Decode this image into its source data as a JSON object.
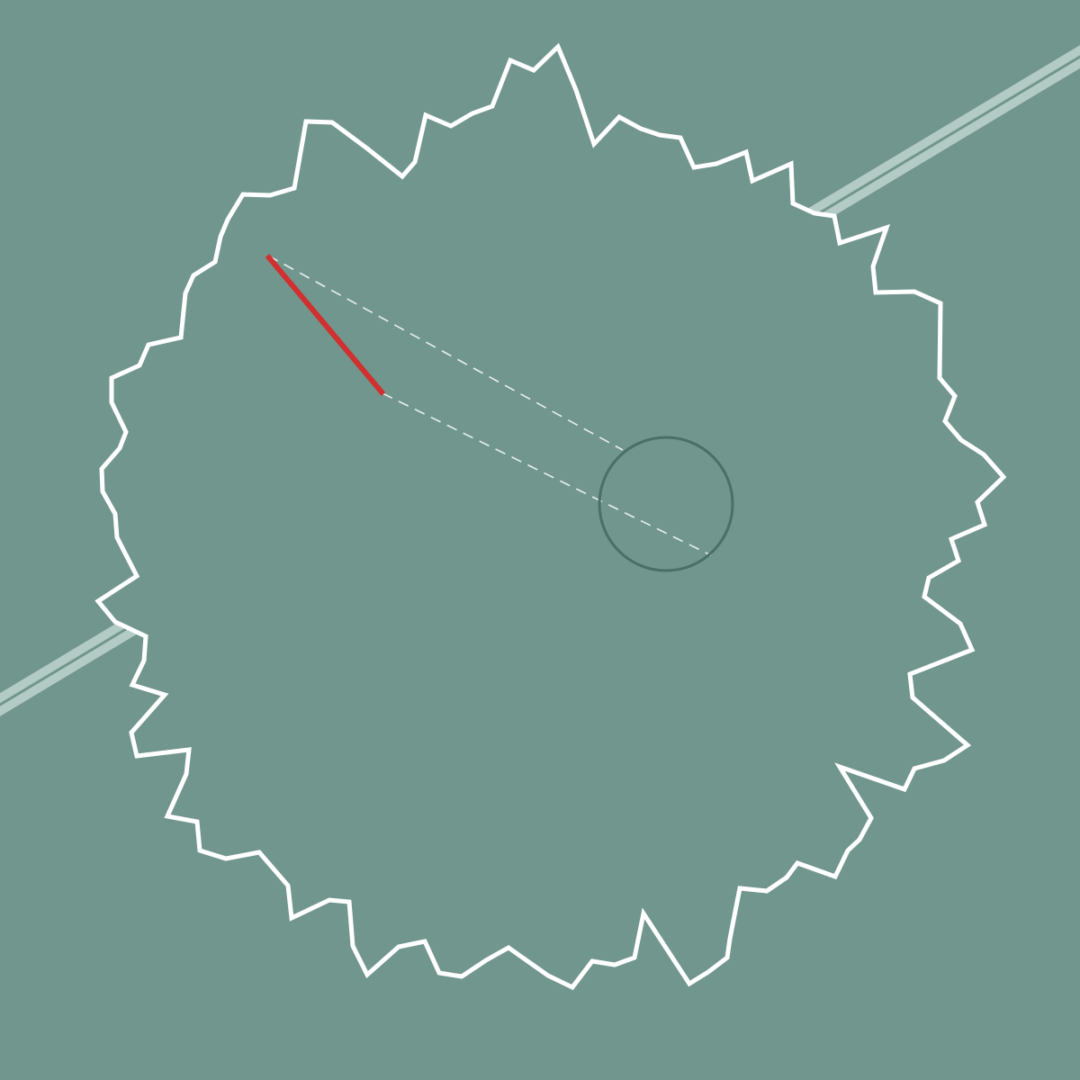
{
  "scene": {
    "name": "geometry-puzzle-canvas",
    "colors": {
      "background": "#71968d",
      "boundary": "#ffffff",
      "segment": "#d03030",
      "sight_line": "#e8f0ee",
      "target_ring": "#4a7066",
      "road": "#b3cbc5",
      "road_center": "#71968d"
    },
    "elements": [
      {
        "kind": "road-strip",
        "icon": "diagonal-road"
      },
      {
        "kind": "jagged-boundary",
        "icon": "star-polygon-outline"
      },
      {
        "kind": "red-segment",
        "icon": "line-segment"
      },
      {
        "kind": "dashed-sight-lines",
        "icon": "dashed-line"
      },
      {
        "kind": "target-circle",
        "icon": "circle-outline"
      }
    ]
  }
}
